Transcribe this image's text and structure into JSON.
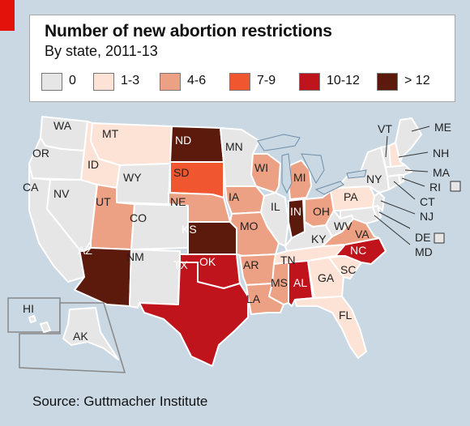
{
  "title": "Number of new abortion restrictions",
  "subtitle": "By state, 2011-13",
  "source": "Source: Guttmacher Institute",
  "legend": [
    {
      "label": "0",
      "color": "#e6e6e6"
    },
    {
      "label": "1-3",
      "color": "#fde3d6"
    },
    {
      "label": "4-6",
      "color": "#eda184"
    },
    {
      "label": "7-9",
      "color": "#f0562f"
    },
    {
      "label": "10-12",
      "color": "#c0141c"
    },
    {
      "label": "> 12",
      "color": "#5c1a0c"
    }
  ],
  "states": {
    "WA": {
      "label": "WA",
      "category": "0"
    },
    "OR": {
      "label": "OR",
      "category": "0"
    },
    "CA": {
      "label": "CA",
      "category": "0"
    },
    "NV": {
      "label": "NV",
      "category": "0"
    },
    "ID": {
      "label": "ID",
      "category": "1-3"
    },
    "MT": {
      "label": "MT",
      "category": "1-3"
    },
    "WY": {
      "label": "WY",
      "category": "0"
    },
    "UT": {
      "label": "UT",
      "category": "4-6"
    },
    "AZ": {
      "label": "AZ",
      "category": "> 12"
    },
    "CO": {
      "label": "CO",
      "category": "0"
    },
    "NM": {
      "label": "NM",
      "category": "0"
    },
    "ND": {
      "label": "ND",
      "category": "> 12"
    },
    "SD": {
      "label": "SD",
      "category": "7-9"
    },
    "NE": {
      "label": "NE",
      "category": "4-6"
    },
    "KS": {
      "label": "KS",
      "category": "> 12"
    },
    "OK": {
      "label": "OK",
      "category": "10-12"
    },
    "TX": {
      "label": "TX",
      "category": "10-12"
    },
    "MN": {
      "label": "MN",
      "category": "0"
    },
    "IA": {
      "label": "IA",
      "category": "4-6"
    },
    "MO": {
      "label": "MO",
      "category": "4-6"
    },
    "AR": {
      "label": "AR",
      "category": "4-6"
    },
    "LA": {
      "label": "LA",
      "category": "4-6"
    },
    "WI": {
      "label": "WI",
      "category": "4-6"
    },
    "IL": {
      "label": "IL",
      "category": "0"
    },
    "MI": {
      "label": "MI",
      "category": "4-6"
    },
    "IN": {
      "label": "IN",
      "category": "> 12"
    },
    "OH": {
      "label": "OH",
      "category": "4-6"
    },
    "KY": {
      "label": "KY",
      "category": "0"
    },
    "TN": {
      "label": "TN",
      "category": "1-3"
    },
    "MS": {
      "label": "MS",
      "category": "4-6"
    },
    "AL": {
      "label": "AL",
      "category": "10-12"
    },
    "GA": {
      "label": "GA",
      "category": "1-3"
    },
    "FL": {
      "label": "FL",
      "category": "1-3"
    },
    "SC": {
      "label": "SC",
      "category": "1-3"
    },
    "NC": {
      "label": "NC",
      "category": "10-12"
    },
    "VA": {
      "label": "VA",
      "category": "4-6"
    },
    "WV": {
      "label": "WV",
      "category": "0"
    },
    "PA": {
      "label": "PA",
      "category": "1-3"
    },
    "NY": {
      "label": "NY",
      "category": "0"
    },
    "VT": {
      "label": "VT",
      "category": "0"
    },
    "NH": {
      "label": "NH",
      "category": "1-3"
    },
    "ME": {
      "label": "ME",
      "category": "0"
    },
    "MA": {
      "label": "MA",
      "category": "0"
    },
    "RI": {
      "label": "RI",
      "category": "0"
    },
    "CT": {
      "label": "CT",
      "category": "0"
    },
    "NJ": {
      "label": "NJ",
      "category": "0"
    },
    "DE": {
      "label": "DE",
      "category": "0"
    },
    "MD": {
      "label": "MD",
      "category": "0"
    },
    "HI": {
      "label": "HI",
      "category": "0"
    },
    "AK": {
      "label": "AK",
      "category": "0"
    }
  }
}
